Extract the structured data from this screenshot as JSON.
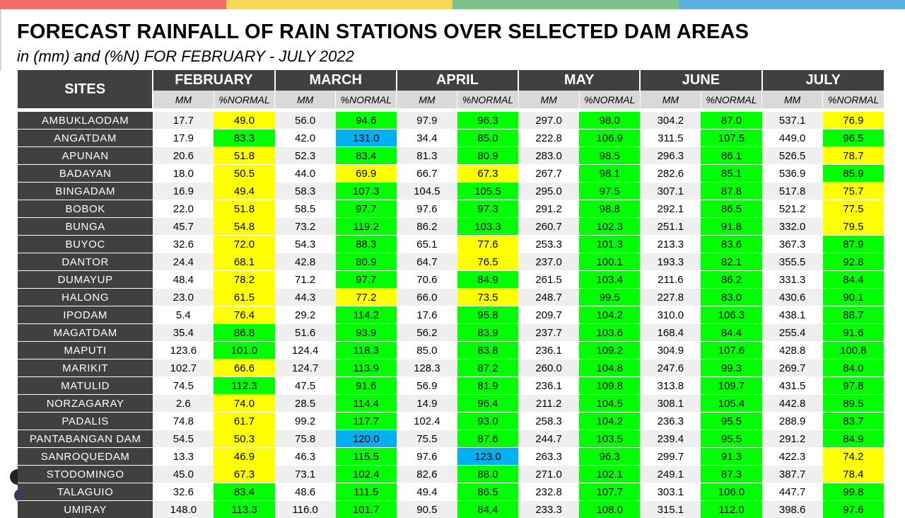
{
  "title": "FORECAST RAINFALL OF RAIN STATIONS OVER SELECTED DAM AREAS",
  "subtitle": "in (mm) and (%N) FOR FEBRUARY - JULY 2022",
  "colors": {
    "bar": [
      "#f26b6b",
      "#f8d85a",
      "#7cc08a",
      "#5aaee0"
    ],
    "header": "#404040",
    "subheader": "#d9d9d9",
    "green": "#00ff00",
    "yellow": "#ffff00",
    "blue": "#00b0f0"
  },
  "table": {
    "sites_header": "SITES",
    "months": [
      "FEBRUARY",
      "MARCH",
      "APRIL",
      "MAY",
      "JUNE",
      "JULY"
    ],
    "sub_mm": "MM",
    "sub_pct": "%NORMAL",
    "rows": [
      {
        "site": "AMBUKLAODAM",
        "vals": [
          [
            "17.7",
            "49.0",
            "y"
          ],
          [
            "56.0",
            "94.6",
            "g"
          ],
          [
            "97.9",
            "96.3",
            "g"
          ],
          [
            "297.0",
            "98.0",
            "g"
          ],
          [
            "304.2",
            "87.0",
            "g"
          ],
          [
            "537.1",
            "76.9",
            "y"
          ]
        ]
      },
      {
        "site": "ANGATDAM",
        "vals": [
          [
            "17.9",
            "83.3",
            "g"
          ],
          [
            "42.0",
            "131.0",
            "b"
          ],
          [
            "34.4",
            "85.0",
            "g"
          ],
          [
            "222.8",
            "106.9",
            "g"
          ],
          [
            "311.5",
            "107.5",
            "g"
          ],
          [
            "449.0",
            "96.5",
            "g"
          ]
        ]
      },
      {
        "site": "APUNAN",
        "vals": [
          [
            "20.6",
            "51.8",
            "y"
          ],
          [
            "52.3",
            "83.4",
            "g"
          ],
          [
            "81.3",
            "80.9",
            "g"
          ],
          [
            "283.0",
            "98.5",
            "g"
          ],
          [
            "296.3",
            "86.1",
            "g"
          ],
          [
            "526.5",
            "78.7",
            "y"
          ]
        ]
      },
      {
        "site": "BADAYAN",
        "vals": [
          [
            "18.0",
            "50.5",
            "y"
          ],
          [
            "44.0",
            "69.9",
            "y"
          ],
          [
            "66.7",
            "67.3",
            "y"
          ],
          [
            "267.7",
            "98.1",
            "g"
          ],
          [
            "282.6",
            "85.1",
            "g"
          ],
          [
            "536.9",
            "85.9",
            "g"
          ]
        ]
      },
      {
        "site": "BINGADAM",
        "vals": [
          [
            "16.9",
            "49.4",
            "y"
          ],
          [
            "58.3",
            "107.3",
            "g"
          ],
          [
            "104.5",
            "105.5",
            "g"
          ],
          [
            "295.0",
            "97.5",
            "g"
          ],
          [
            "307.1",
            "87.8",
            "g"
          ],
          [
            "517.8",
            "75.7",
            "y"
          ]
        ]
      },
      {
        "site": "BOBOK",
        "vals": [
          [
            "22.0",
            "51.8",
            "y"
          ],
          [
            "58.5",
            "97.7",
            "g"
          ],
          [
            "97.6",
            "97.3",
            "g"
          ],
          [
            "291.2",
            "98.8",
            "g"
          ],
          [
            "292.1",
            "86.5",
            "g"
          ],
          [
            "521.2",
            "77.5",
            "y"
          ]
        ]
      },
      {
        "site": "BUNGA",
        "vals": [
          [
            "45.7",
            "54.8",
            "y"
          ],
          [
            "73.2",
            "119.2",
            "g"
          ],
          [
            "86.2",
            "103.3",
            "g"
          ],
          [
            "260.7",
            "102.3",
            "g"
          ],
          [
            "251.1",
            "91.8",
            "g"
          ],
          [
            "332.0",
            "79.5",
            "y"
          ]
        ]
      },
      {
        "site": "BUYOC",
        "vals": [
          [
            "32.6",
            "72.0",
            "y"
          ],
          [
            "54.3",
            "88.3",
            "g"
          ],
          [
            "65.1",
            "77.6",
            "y"
          ],
          [
            "253.3",
            "101.3",
            "g"
          ],
          [
            "213.3",
            "83.6",
            "g"
          ],
          [
            "367.3",
            "87.9",
            "g"
          ]
        ]
      },
      {
        "site": "DANTOR",
        "vals": [
          [
            "24.4",
            "68.1",
            "y"
          ],
          [
            "42.8",
            "80.9",
            "g"
          ],
          [
            "64.7",
            "76.5",
            "y"
          ],
          [
            "237.0",
            "100.1",
            "g"
          ],
          [
            "193.3",
            "82.1",
            "g"
          ],
          [
            "355.5",
            "92.8",
            "g"
          ]
        ]
      },
      {
        "site": "DUMAYUP",
        "vals": [
          [
            "48.4",
            "78.2",
            "y"
          ],
          [
            "71.2",
            "97.7",
            "g"
          ],
          [
            "70.6",
            "84.9",
            "g"
          ],
          [
            "261.5",
            "103.4",
            "g"
          ],
          [
            "211.6",
            "86.2",
            "g"
          ],
          [
            "331.3",
            "84.4",
            "g"
          ]
        ]
      },
      {
        "site": "HALONG",
        "vals": [
          [
            "23.0",
            "61.5",
            "y"
          ],
          [
            "44.3",
            "77.2",
            "y"
          ],
          [
            "66.0",
            "73.5",
            "y"
          ],
          [
            "248.7",
            "99.5",
            "g"
          ],
          [
            "227.8",
            "83.0",
            "g"
          ],
          [
            "430.6",
            "90.1",
            "g"
          ]
        ]
      },
      {
        "site": "IPODAM",
        "vals": [
          [
            "5.4",
            "76.4",
            "y"
          ],
          [
            "29.2",
            "114.2",
            "g"
          ],
          [
            "17.6",
            "95.8",
            "g"
          ],
          [
            "209.7",
            "104.2",
            "g"
          ],
          [
            "310.0",
            "106.3",
            "g"
          ],
          [
            "438.1",
            "88.7",
            "g"
          ]
        ]
      },
      {
        "site": "MAGATDAM",
        "vals": [
          [
            "35.4",
            "86.8",
            "g"
          ],
          [
            "51.6",
            "93.9",
            "g"
          ],
          [
            "56.2",
            "83.9",
            "g"
          ],
          [
            "237.7",
            "103.6",
            "g"
          ],
          [
            "168.4",
            "84.4",
            "g"
          ],
          [
            "255.4",
            "91.6",
            "g"
          ]
        ]
      },
      {
        "site": "MAPUTI",
        "vals": [
          [
            "123.6",
            "101.0",
            "g"
          ],
          [
            "124.4",
            "118.3",
            "g"
          ],
          [
            "85.0",
            "83.8",
            "g"
          ],
          [
            "236.1",
            "109.2",
            "g"
          ],
          [
            "304.9",
            "107.6",
            "g"
          ],
          [
            "428.8",
            "100.8",
            "g"
          ]
        ]
      },
      {
        "site": "MARIKIT",
        "vals": [
          [
            "102.7",
            "66.6",
            "y"
          ],
          [
            "124.7",
            "113.9",
            "g"
          ],
          [
            "128.3",
            "87.2",
            "g"
          ],
          [
            "260.0",
            "104.8",
            "g"
          ],
          [
            "247.6",
            "99.3",
            "g"
          ],
          [
            "269.7",
            "84.0",
            "g"
          ]
        ]
      },
      {
        "site": "MATULID",
        "vals": [
          [
            "74.5",
            "112.3",
            "g"
          ],
          [
            "47.5",
            "91.6",
            "g"
          ],
          [
            "56.9",
            "81.9",
            "g"
          ],
          [
            "236.1",
            "109.8",
            "g"
          ],
          [
            "313.8",
            "109.7",
            "g"
          ],
          [
            "431.5",
            "97.8",
            "g"
          ]
        ]
      },
      {
        "site": "NORZAGARAY",
        "vals": [
          [
            "2.6",
            "74.0",
            "y"
          ],
          [
            "28.5",
            "114.4",
            "g"
          ],
          [
            "14.9",
            "96.4",
            "g"
          ],
          [
            "211.2",
            "104.5",
            "g"
          ],
          [
            "308.1",
            "105.4",
            "g"
          ],
          [
            "442.8",
            "89.5",
            "g"
          ]
        ]
      },
      {
        "site": "PADALIS",
        "vals": [
          [
            "74.8",
            "61.7",
            "y"
          ],
          [
            "99.2",
            "117.7",
            "g"
          ],
          [
            "102.4",
            "93.0",
            "g"
          ],
          [
            "258.3",
            "104.2",
            "g"
          ],
          [
            "236.3",
            "95.5",
            "g"
          ],
          [
            "288.9",
            "83.7",
            "g"
          ]
        ]
      },
      {
        "site": "PANTABANGAN DAM",
        "vals": [
          [
            "54.5",
            "50.3",
            "y"
          ],
          [
            "75.8",
            "120.0",
            "b"
          ],
          [
            "75.5",
            "87.6",
            "g"
          ],
          [
            "244.7",
            "103.5",
            "g"
          ],
          [
            "239.4",
            "95.5",
            "g"
          ],
          [
            "291.2",
            "84.9",
            "g"
          ]
        ]
      },
      {
        "site": "SANROQUEDAM",
        "vals": [
          [
            "13.3",
            "46.9",
            "y"
          ],
          [
            "46.3",
            "115.5",
            "g"
          ],
          [
            "97.6",
            "123.0",
            "b"
          ],
          [
            "263.3",
            "96.3",
            "g"
          ],
          [
            "299.7",
            "91.3",
            "g"
          ],
          [
            "422.3",
            "74.2",
            "y"
          ]
        ]
      },
      {
        "site": "STODOMINGO",
        "vals": [
          [
            "45.0",
            "67.3",
            "y"
          ],
          [
            "73.1",
            "102.4",
            "g"
          ],
          [
            "82.6",
            "88.0",
            "g"
          ],
          [
            "271.0",
            "102.1",
            "g"
          ],
          [
            "249.1",
            "87.3",
            "g"
          ],
          [
            "387.7",
            "78.4",
            "y"
          ]
        ]
      },
      {
        "site": "TALAGUIO",
        "vals": [
          [
            "32.6",
            "83.4",
            "g"
          ],
          [
            "48.6",
            "111.5",
            "g"
          ],
          [
            "49.4",
            "86.5",
            "g"
          ],
          [
            "232.8",
            "107.7",
            "g"
          ],
          [
            "303.1",
            "106.0",
            "g"
          ],
          [
            "447.7",
            "99.8",
            "g"
          ]
        ]
      },
      {
        "site": "UMIRAY",
        "vals": [
          [
            "148.0",
            "113.3",
            "g"
          ],
          [
            "116.0",
            "101.7",
            "g"
          ],
          [
            "90.5",
            "84.4",
            "g"
          ],
          [
            "233.3",
            "108.0",
            "g"
          ],
          [
            "315.1",
            "112.0",
            "g"
          ],
          [
            "398.6",
            "97.6",
            "g"
          ]
        ]
      }
    ]
  }
}
